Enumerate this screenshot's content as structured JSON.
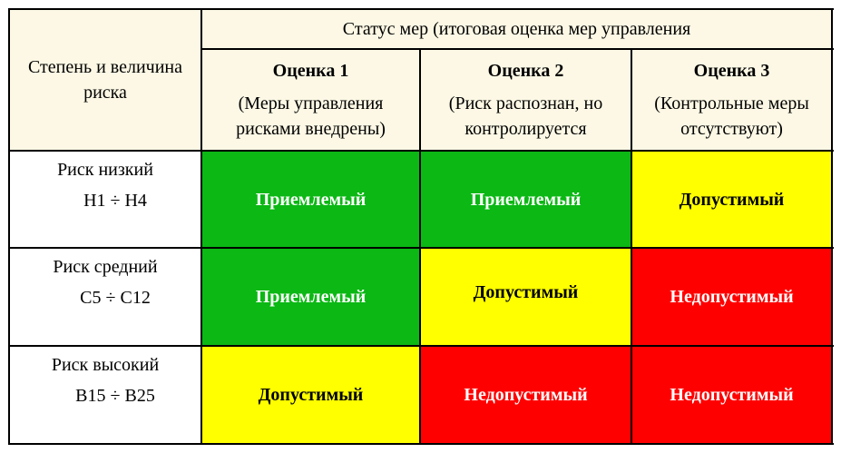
{
  "table": {
    "corner_header": "Степень и величина риска",
    "group_header": "Статус мер (итоговая оценка мер управления",
    "columns": [
      {
        "title": "Оценка 1",
        "description": "(Меры управления рисками внедрены)"
      },
      {
        "title": "Оценка 2",
        "description": "(Риск распознан, но контролируется"
      },
      {
        "title": "Оценка 3",
        "description": "(Контрольные меры отсутствуют)"
      }
    ],
    "rows": [
      {
        "label": "Риск низкий",
        "code": "Н1 ÷ Н4",
        "cells": [
          "Приемлемый",
          "Приемлемый",
          "Допустимый"
        ]
      },
      {
        "label": "Риск средний",
        "code": "С5 ÷ С12",
        "cells": [
          "Приемлемый",
          "Допустимый",
          "Недопустимый"
        ]
      },
      {
        "label": "Риск высокий",
        "code": "В15 ÷ В25",
        "cells": [
          "Допустимый",
          "Недопустимый",
          "Недопустимый"
        ]
      }
    ]
  },
  "colors": {
    "acceptable": "#0bb814",
    "tolerable": "#ffff00",
    "unacceptable": "#ff0000",
    "header_bg": "#fcf8e5"
  }
}
